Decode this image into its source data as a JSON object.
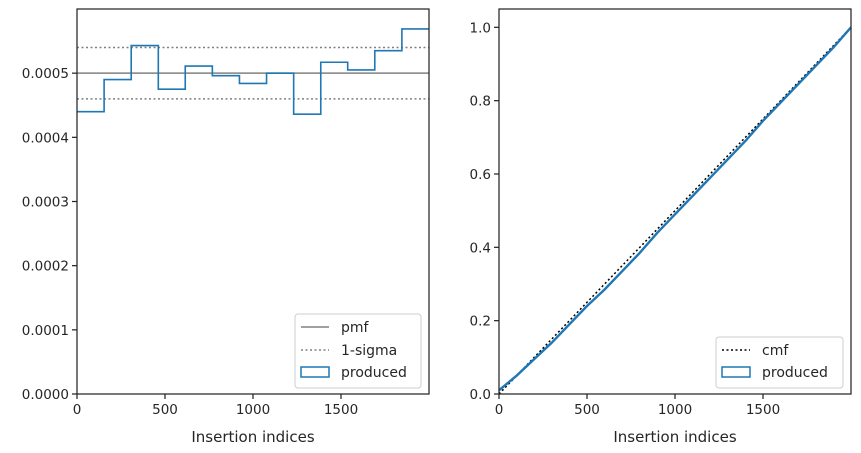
{
  "chart_data": [
    {
      "type": "step",
      "xlabel": "Insertion indices",
      "ylabel": "",
      "xlim": [
        0,
        2000
      ],
      "ylim": [
        0,
        0.0006
      ],
      "xticks": [
        0,
        500,
        1000,
        1500
      ],
      "xtick_labels": [
        "0",
        "500",
        "1000",
        "1500"
      ],
      "yticks": [
        0,
        0.0001,
        0.0002,
        0.0003,
        0.0004,
        0.0005
      ],
      "ytick_labels": [
        "0.0000",
        "0.0001",
        "0.0002",
        "0.0003",
        "0.0004",
        "0.0005"
      ],
      "bin_edges": [
        0,
        154,
        308,
        462,
        615,
        769,
        923,
        1077,
        1231,
        1385,
        1538,
        1692,
        1846,
        2000
      ],
      "series": [
        {
          "name": "produced",
          "kind": "histogram-step",
          "color": "#1f77b4",
          "values": [
            0.00044,
            0.00049,
            0.000543,
            0.000475,
            0.000511,
            0.000496,
            0.000484,
            0.0005,
            0.000436,
            0.000517,
            0.000505,
            0.000535,
            0.000569
          ]
        },
        {
          "name": "pmf",
          "kind": "hline",
          "color": "#808080",
          "y": 0.0005
        },
        {
          "name": "1-sigma",
          "kind": "hline-dotted",
          "color": "#808080",
          "y_values": [
            0.00046,
            0.00054
          ]
        }
      ],
      "legend": {
        "placement": "lower-right",
        "entries": [
          "pmf",
          "1-sigma",
          "produced"
        ]
      }
    },
    {
      "type": "line",
      "xlabel": "Insertion indices",
      "ylabel": "",
      "xlim": [
        0,
        2000
      ],
      "ylim": [
        0,
        1.05
      ],
      "xticks": [
        0,
        500,
        1000,
        1500
      ],
      "xtick_labels": [
        "0",
        "500",
        "1000",
        "1500"
      ],
      "yticks": [
        0,
        0.2,
        0.4,
        0.6,
        0.8,
        1.0
      ],
      "ytick_labels": [
        "0.0",
        "0.2",
        "0.4",
        "0.6",
        "0.8",
        "1.0"
      ],
      "series": [
        {
          "name": "cmf",
          "kind": "line-dotted",
          "color": "#000000",
          "x": [
            0,
            2000
          ],
          "y": [
            0,
            1.0
          ]
        },
        {
          "name": "produced",
          "kind": "step-line",
          "color": "#1f77b4",
          "x": [
            0,
            100,
            200,
            300,
            400,
            500,
            600,
            700,
            800,
            900,
            1000,
            1100,
            1200,
            1300,
            1400,
            1500,
            1600,
            1700,
            1800,
            1900,
            2000
          ],
          "y": [
            0.01,
            0.05,
            0.095,
            0.14,
            0.19,
            0.24,
            0.285,
            0.335,
            0.385,
            0.44,
            0.49,
            0.54,
            0.59,
            0.64,
            0.69,
            0.745,
            0.795,
            0.845,
            0.895,
            0.945,
            1.0
          ]
        }
      ],
      "legend": {
        "placement": "lower-right",
        "entries": [
          "cmf",
          "produced"
        ]
      }
    }
  ]
}
